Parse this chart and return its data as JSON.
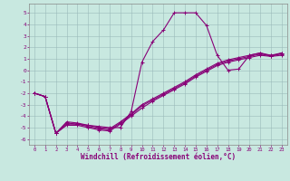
{
  "xlabel": "Windchill (Refroidissement éolien,°C)",
  "xlim": [
    -0.5,
    23.5
  ],
  "ylim": [
    -6.5,
    5.8
  ],
  "yticks": [
    -6,
    -5,
    -4,
    -3,
    -2,
    -1,
    0,
    1,
    2,
    3,
    4,
    5
  ],
  "xticks": [
    0,
    1,
    2,
    3,
    4,
    5,
    6,
    7,
    8,
    9,
    10,
    11,
    12,
    13,
    14,
    15,
    16,
    17,
    18,
    19,
    20,
    21,
    22,
    23
  ],
  "bg_color": "#c8e8e0",
  "line_color": "#880077",
  "curve_x": [
    0,
    1,
    2,
    3,
    4,
    5,
    6,
    7,
    8,
    9,
    10,
    11,
    12,
    13,
    14,
    15,
    16,
    17,
    18,
    19,
    20,
    21,
    22,
    23
  ],
  "curve_y": [
    -2.0,
    -2.3,
    -5.5,
    -4.5,
    -4.6,
    -4.8,
    -4.9,
    -5.0,
    -5.0,
    -3.6,
    0.7,
    2.5,
    3.5,
    5.0,
    5.0,
    5.0,
    3.9,
    1.3,
    0.0,
    0.1,
    1.3,
    1.5,
    1.2,
    1.5
  ],
  "line2_x": [
    0,
    1,
    2,
    3,
    4,
    5,
    6,
    7,
    8,
    9,
    10,
    11,
    12,
    13,
    14,
    15,
    16,
    17,
    18,
    19,
    20,
    21,
    22,
    23
  ],
  "line2_y": [
    -2.0,
    -2.3,
    -5.5,
    -4.6,
    -4.7,
    -4.8,
    -5.0,
    -5.1,
    -4.5,
    -3.8,
    -3.0,
    -2.5,
    -2.0,
    -1.5,
    -1.0,
    -0.4,
    0.1,
    0.6,
    0.9,
    1.1,
    1.3,
    1.5,
    1.3,
    1.5
  ],
  "line3_x": [
    0,
    1,
    2,
    3,
    4,
    5,
    6,
    7,
    8,
    9,
    10,
    11,
    12,
    13,
    14,
    15,
    16,
    17,
    18,
    19,
    20,
    21,
    22,
    23
  ],
  "line3_y": [
    -2.0,
    -2.3,
    -5.5,
    -4.7,
    -4.7,
    -4.9,
    -5.1,
    -5.2,
    -4.6,
    -3.9,
    -3.1,
    -2.6,
    -2.1,
    -1.6,
    -1.1,
    -0.5,
    0.0,
    0.5,
    0.8,
    1.0,
    1.2,
    1.4,
    1.3,
    1.4
  ],
  "line4_x": [
    0,
    1,
    2,
    3,
    4,
    5,
    6,
    7,
    8,
    9,
    10,
    11,
    12,
    13,
    14,
    15,
    16,
    17,
    18,
    19,
    20,
    21,
    22,
    23
  ],
  "line4_y": [
    -2.0,
    -2.3,
    -5.5,
    -4.8,
    -4.8,
    -5.0,
    -5.2,
    -5.3,
    -4.7,
    -4.0,
    -3.3,
    -2.7,
    -2.2,
    -1.7,
    -1.2,
    -0.6,
    -0.1,
    0.4,
    0.7,
    0.9,
    1.1,
    1.3,
    1.2,
    1.3
  ]
}
